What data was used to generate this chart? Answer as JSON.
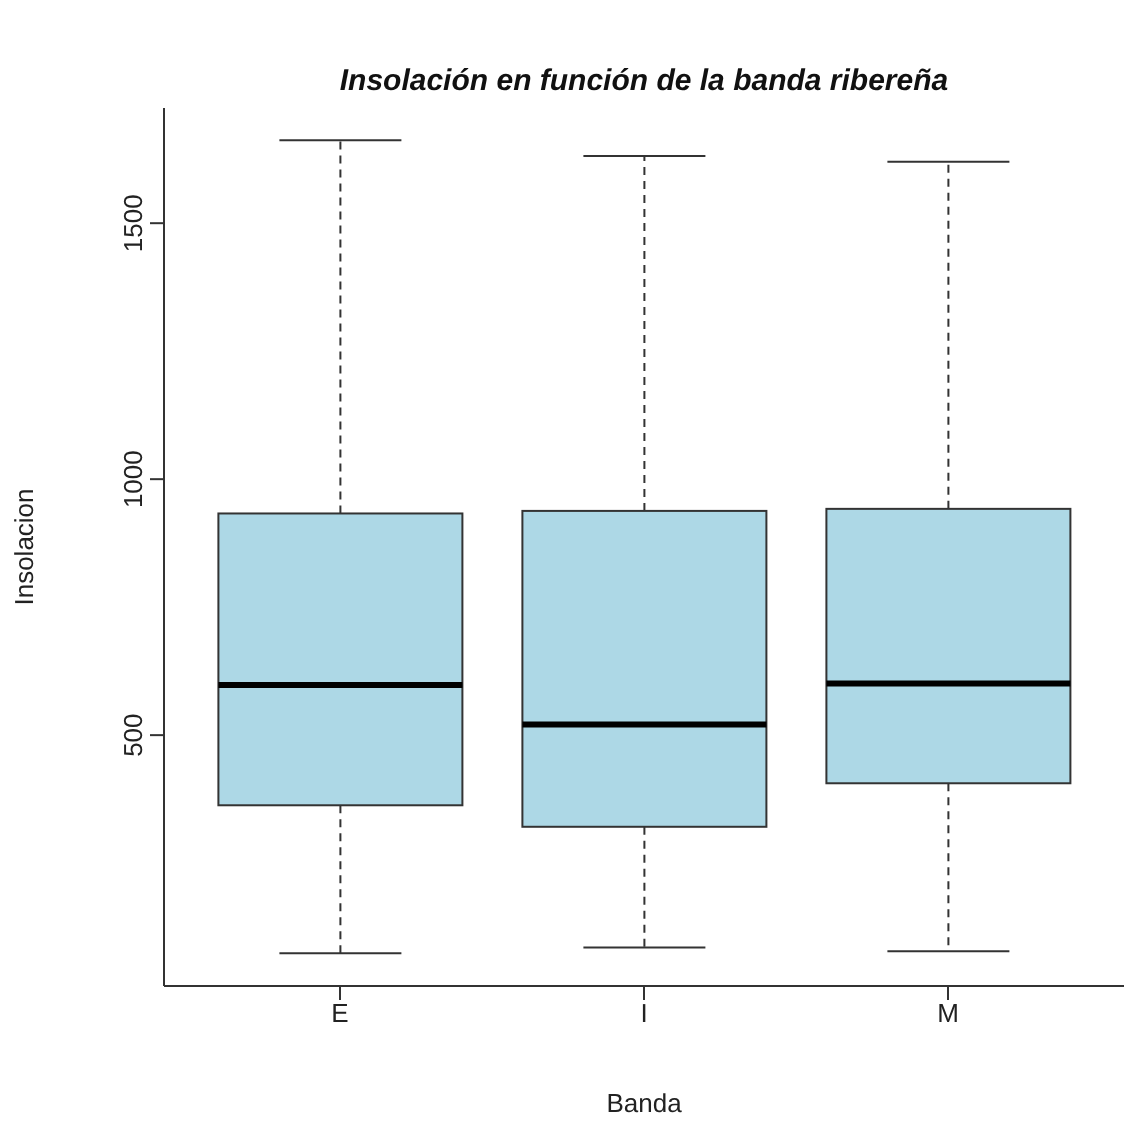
{
  "chart_data": {
    "type": "box",
    "title": "Insolación en función de la banda ribereña",
    "xlabel": "Banda",
    "ylabel": "Insolacion",
    "categories": [
      "E",
      "I",
      "M"
    ],
    "color": "#add8e6",
    "boxes": [
      {
        "low": 74,
        "q1": 363,
        "median": 598,
        "q3": 933,
        "high": 1662
      },
      {
        "low": 85,
        "q1": 321,
        "median": 521,
        "q3": 938,
        "high": 1631
      },
      {
        "low": 78,
        "q1": 406,
        "median": 601,
        "q3": 942,
        "high": 1620
      }
    ],
    "ylim": [
      10,
      1725
    ],
    "yticks": [
      500,
      1000,
      1500
    ]
  }
}
